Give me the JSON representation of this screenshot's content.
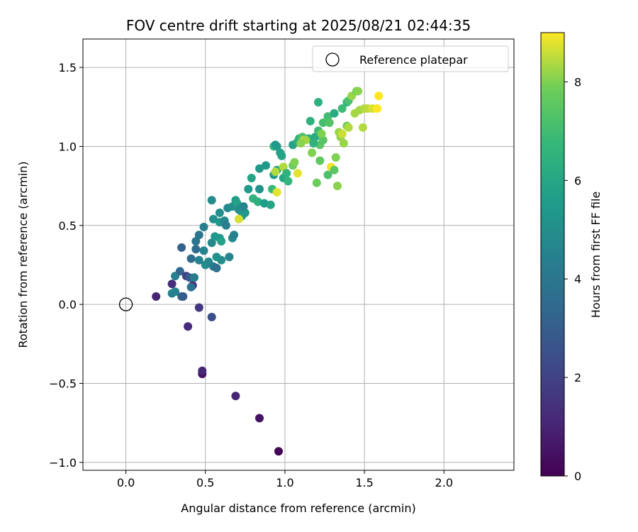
{
  "chart_data": {
    "type": "scatter",
    "title": "FOV centre drift starting at 2025/08/21 02:44:35",
    "xlabel": "Angular distance from reference (arcmin)",
    "ylabel": "Rotation from reference (arcmin)",
    "xlim": [
      -0.27,
      2.44
    ],
    "ylim": [
      -1.05,
      1.68
    ],
    "xticks": [
      0.0,
      0.5,
      1.0,
      1.5,
      2.0
    ],
    "xtick_labels": [
      "0.0",
      "0.5",
      "1.0",
      "1.5",
      "2.0"
    ],
    "yticks": [
      -1.0,
      -0.5,
      0.0,
      0.5,
      1.0,
      1.5
    ],
    "ytick_labels": [
      "−1.0",
      "−0.5",
      "0.0",
      "0.5",
      "1.0",
      "1.5"
    ],
    "grid": true,
    "legend": {
      "placement": "top-right",
      "entries": [
        "Reference platepar"
      ]
    },
    "reference_point": {
      "x": 0.0,
      "y": 0.0,
      "name": "Reference platepar"
    },
    "colorbar": {
      "label": "Hours from first FF file",
      "range": [
        0,
        9
      ],
      "ticks": [
        0,
        2,
        4,
        6,
        8
      ],
      "tick_labels": [
        "0",
        "2",
        "4",
        "6",
        "8"
      ],
      "colormap": "viridis"
    },
    "points": [
      [
        0.96,
        -0.93,
        0.1
      ],
      [
        0.84,
        -0.72,
        0.5
      ],
      [
        0.69,
        -0.58,
        1.0
      ],
      [
        0.48,
        -0.44,
        0.5
      ],
      [
        0.48,
        -0.42,
        1.1
      ],
      [
        0.46,
        -0.02,
        1.6
      ],
      [
        0.54,
        -0.08,
        2.4
      ],
      [
        0.39,
        -0.14,
        1.2
      ],
      [
        0.19,
        0.05,
        1.0
      ],
      [
        0.29,
        0.13,
        1.4
      ],
      [
        0.29,
        0.07,
        4.5
      ],
      [
        0.31,
        0.08,
        4.5
      ],
      [
        0.35,
        0.05,
        3.4
      ],
      [
        0.36,
        0.05,
        2.9
      ],
      [
        0.42,
        0.12,
        1.3
      ],
      [
        0.41,
        0.11,
        3.8
      ],
      [
        0.31,
        0.18,
        4.4
      ],
      [
        0.34,
        0.21,
        3.4
      ],
      [
        0.38,
        0.18,
        2.0
      ],
      [
        0.4,
        0.17,
        3.0
      ],
      [
        0.43,
        0.17,
        4.2
      ],
      [
        0.41,
        0.29,
        3.6
      ],
      [
        0.44,
        0.35,
        3.5
      ],
      [
        0.44,
        0.4,
        4.0
      ],
      [
        0.35,
        0.36,
        3.2
      ],
      [
        0.46,
        0.44,
        4.0
      ],
      [
        0.46,
        0.28,
        4.5
      ],
      [
        0.49,
        0.34,
        4.6
      ],
      [
        0.5,
        0.25,
        4.9
      ],
      [
        0.52,
        0.27,
        4.8
      ],
      [
        0.55,
        0.24,
        4.2
      ],
      [
        0.57,
        0.23,
        3.7
      ],
      [
        0.57,
        0.3,
        5.2
      ],
      [
        0.6,
        0.28,
        5.0
      ],
      [
        0.65,
        0.3,
        4.6
      ],
      [
        0.49,
        0.49,
        4.4
      ],
      [
        0.54,
        0.39,
        4.8
      ],
      [
        0.56,
        0.43,
        5.3
      ],
      [
        0.59,
        0.42,
        5.4
      ],
      [
        0.6,
        0.4,
        5.8
      ],
      [
        0.67,
        0.42,
        4.8
      ],
      [
        0.68,
        0.44,
        4.4
      ],
      [
        0.54,
        0.66,
        4.9
      ],
      [
        0.55,
        0.54,
        5.1
      ],
      [
        0.59,
        0.52,
        5.3
      ],
      [
        0.59,
        0.58,
        5.0
      ],
      [
        0.62,
        0.53,
        4.7
      ],
      [
        0.63,
        0.5,
        4.3
      ],
      [
        0.64,
        0.61,
        4.8
      ],
      [
        0.67,
        0.62,
        5.1
      ],
      [
        0.69,
        0.66,
        5.6
      ],
      [
        0.7,
        0.64,
        5.8
      ],
      [
        0.71,
        0.6,
        5.0
      ],
      [
        0.73,
        0.56,
        5.7
      ],
      [
        0.75,
        0.58,
        5.4
      ],
      [
        0.74,
        0.62,
        4.6
      ],
      [
        0.71,
        0.54,
        8.7
      ],
      [
        0.77,
        0.73,
        5.5
      ],
      [
        0.8,
        0.67,
        6.5
      ],
      [
        0.79,
        0.8,
        5.9
      ],
      [
        0.83,
        0.65,
        6.4
      ],
      [
        0.84,
        0.73,
        5.2
      ],
      [
        0.84,
        0.86,
        5.4
      ],
      [
        0.88,
        0.88,
        5.4
      ],
      [
        0.87,
        0.64,
        5.6
      ],
      [
        0.91,
        0.63,
        5.9
      ],
      [
        0.92,
        0.73,
        6.8
      ],
      [
        0.95,
        0.71,
        8.8
      ],
      [
        0.93,
        0.82,
        5.6
      ],
      [
        0.95,
        0.85,
        5.8
      ],
      [
        0.94,
        0.84,
        8.4
      ],
      [
        0.93,
        1.0,
        6.9
      ],
      [
        0.94,
        1.01,
        5.4
      ],
      [
        0.95,
        1.0,
        5.5
      ],
      [
        0.97,
        0.96,
        5.8
      ],
      [
        0.98,
        0.94,
        5.9
      ],
      [
        0.99,
        0.8,
        6.0
      ],
      [
        0.99,
        0.87,
        8.4
      ],
      [
        1.02,
        0.78,
        6.6
      ],
      [
        1.01,
        0.83,
        6.5
      ],
      [
        1.05,
        0.88,
        7.8
      ],
      [
        1.06,
        0.9,
        8.0
      ],
      [
        1.08,
        0.83,
        8.8
      ],
      [
        1.05,
        1.01,
        5.8
      ],
      [
        1.08,
        1.03,
        6.3
      ],
      [
        1.09,
        1.05,
        6.5
      ],
      [
        1.11,
        1.06,
        7.3
      ],
      [
        1.12,
        1.04,
        8.7
      ],
      [
        1.15,
        1.05,
        6.6
      ],
      [
        1.17,
        0.96,
        8.0
      ],
      [
        1.16,
        1.16,
        6.5
      ],
      [
        1.2,
        0.77,
        7.8
      ],
      [
        1.19,
        1.06,
        6.2
      ],
      [
        1.21,
        1.1,
        6.9
      ],
      [
        1.22,
        1.01,
        7.5
      ],
      [
        1.22,
        0.91,
        7.6
      ],
      [
        1.24,
        1.04,
        7.4
      ],
      [
        1.23,
        1.08,
        8.0
      ],
      [
        1.24,
        1.15,
        7.1
      ],
      [
        1.27,
        1.19,
        7.0
      ],
      [
        1.28,
        1.15,
        7.4
      ],
      [
        1.27,
        0.82,
        7.2
      ],
      [
        1.29,
        0.87,
        8.9
      ],
      [
        1.31,
        0.85,
        7.5
      ],
      [
        1.32,
        0.93,
        8.0
      ],
      [
        1.33,
        0.75,
        8.1
      ],
      [
        1.31,
        1.21,
        6.2
      ],
      [
        1.34,
        1.09,
        8.2
      ],
      [
        1.35,
        1.06,
        8.2
      ],
      [
        1.36,
        1.08,
        8.6
      ],
      [
        1.37,
        1.02,
        8.2
      ],
      [
        1.36,
        1.24,
        6.9
      ],
      [
        1.39,
        1.13,
        7.9
      ],
      [
        1.4,
        1.12,
        8.4
      ],
      [
        1.39,
        1.28,
        6.6
      ],
      [
        1.4,
        1.29,
        7.2
      ],
      [
        1.42,
        1.32,
        8.2
      ],
      [
        1.44,
        1.21,
        8.3
      ],
      [
        1.45,
        1.35,
        7.9
      ],
      [
        1.46,
        1.35,
        8.1
      ],
      [
        1.47,
        1.23,
        8.3
      ],
      [
        1.49,
        1.12,
        8.4
      ],
      [
        1.5,
        1.24,
        8.4
      ],
      [
        1.52,
        1.24,
        8.5
      ],
      [
        1.55,
        1.24,
        8.7
      ],
      [
        1.58,
        1.24,
        9.0
      ],
      [
        1.59,
        1.32,
        9.0
      ],
      [
        1.21,
        1.28,
        6.4
      ],
      [
        1.13,
        1.04,
        8.3
      ],
      [
        1.18,
        1.02,
        6.5
      ],
      [
        1.1,
        1.02,
        8.1
      ]
    ]
  }
}
